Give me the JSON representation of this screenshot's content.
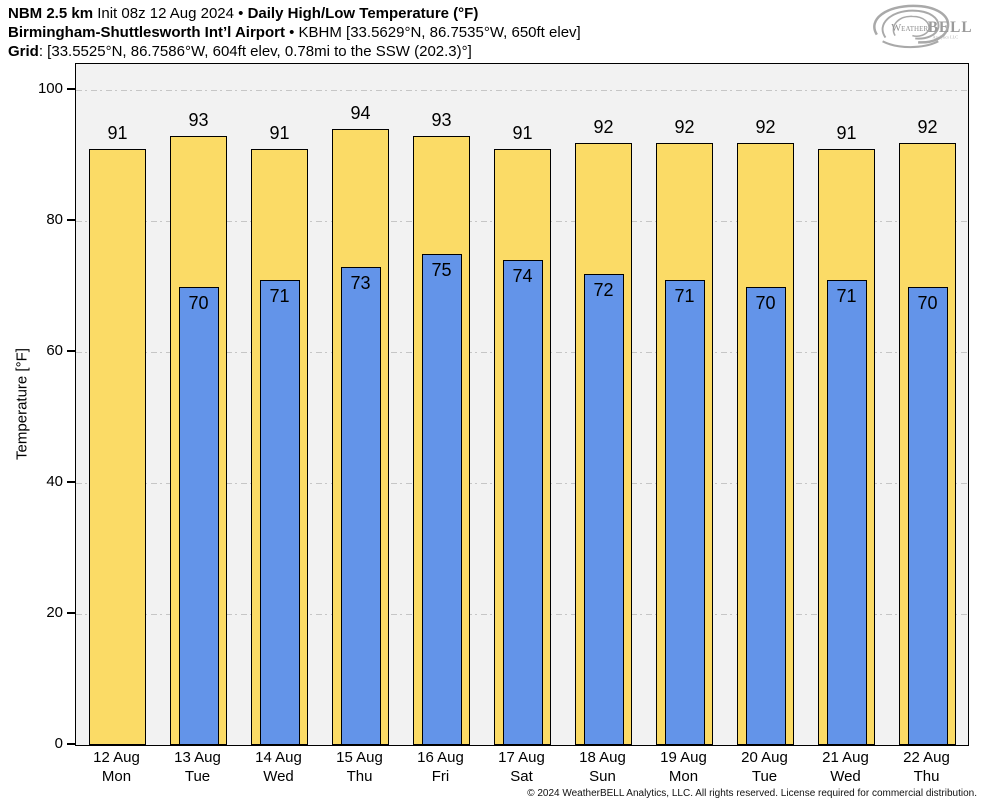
{
  "header": {
    "model": "NBM 2.5 km",
    "init": "Init 08z 12 Aug 2024",
    "bullet": "•",
    "product": "Daily High/Low Temperature (°F)",
    "station": "Birmingham-Shuttlesworth Int’l Airport",
    "station_bullet": "•",
    "station_details": "KBHM [33.5629°N, 86.7535°W, 650ft elev]",
    "grid_label": "Grid",
    "grid_details": ": [33.5525°N, 86.7586°W, 604ft elev, 0.78mi to the SSW (202.3)°]"
  },
  "logo": {
    "brand_weather": "Weather",
    "brand_bell": "BELL",
    "subtitle": "Analytics LLC"
  },
  "chart_data": {
    "type": "bar",
    "title": "NBM 2.5 km Init 08z 12 Aug 2024 • Daily High/Low Temperature (°F)",
    "subtitle": "Birmingham-Shuttlesworth Int’l Airport • KBHM",
    "ylabel": "Temperature [°F]",
    "ylim": [
      0,
      104
    ],
    "yticks": [
      0,
      20,
      40,
      60,
      80,
      100
    ],
    "grid": "horizontal dash-dot, on",
    "legend": "none (values labeled on bars)",
    "categories": [
      "12 Aug",
      "13 Aug",
      "14 Aug",
      "15 Aug",
      "16 Aug",
      "17 Aug",
      "18 Aug",
      "19 Aug",
      "20 Aug",
      "21 Aug",
      "22 Aug"
    ],
    "day_labels": [
      "Mon",
      "Tue",
      "Wed",
      "Thu",
      "Fri",
      "Sat",
      "Sun",
      "Mon",
      "Tue",
      "Wed",
      "Thu"
    ],
    "series": [
      {
        "name": "High",
        "color": "#FBDB66",
        "values": [
          91,
          93,
          91,
          94,
          93,
          91,
          92,
          92,
          92,
          91,
          92
        ]
      },
      {
        "name": "Low",
        "color": "#6394E9",
        "values": [
          null,
          70,
          71,
          73,
          75,
          74,
          72,
          71,
          70,
          71,
          70
        ]
      }
    ]
  },
  "colors": {
    "plot_background": "#F2F2F2",
    "grid_line": "#C6C6C6",
    "bar_border": "#000000",
    "high_fill": "#FBDB66",
    "low_fill": "#6394E9"
  },
  "footer": {
    "copyright": "© 2024 WeatherBELL Analytics, LLC. All rights reserved. License required for commercial distribution."
  }
}
